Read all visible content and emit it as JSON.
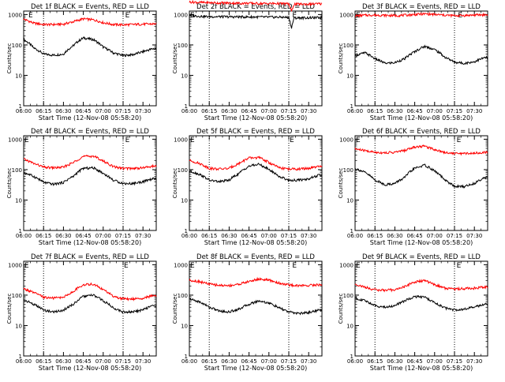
{
  "figure": {
    "xaxis_label": "Start Time (12-Nov-08 05:58:20)",
    "yaxis_label": "Counts/sec",
    "x_tick_labels": [
      "06:00",
      "06:15",
      "06:30",
      "06:45",
      "07:00",
      "07:15",
      "07:30"
    ],
    "y_tick_labels": [
      "1",
      "10",
      "100",
      "1000"
    ],
    "marker_E": "E",
    "colors": {
      "events": "#000000",
      "lld": "#ff0000",
      "axis": "#000000"
    }
  },
  "chart_data": [
    {
      "type": "line",
      "title": "Det 1f BLACK = Events, RED = LLD",
      "xlabel": "Start Time (12-Nov-08 05:58:20)",
      "ylabel": "Counts/sec",
      "ylim": [
        1,
        1000
      ],
      "yscale": "log",
      "x_minutes": [
        0,
        7.5,
        15,
        22.5,
        30,
        37.5,
        45,
        52.5,
        60,
        67.5,
        75,
        82.5,
        90,
        97.5
      ],
      "x_ticks_minutes": [
        0,
        15,
        30,
        45,
        60,
        75,
        90
      ],
      "vlines_minutes": [
        15,
        75
      ],
      "E_markers_minutes": [
        3,
        76
      ],
      "series": [
        {
          "name": "Events",
          "color": "#000000",
          "values": [
            150,
            80,
            50,
            46,
            50,
            95,
            170,
            150,
            85,
            55,
            45,
            48,
            60,
            75
          ]
        },
        {
          "name": "LLD",
          "color": "#ff0000",
          "values": [
            700,
            520,
            470,
            470,
            480,
            580,
            720,
            670,
            540,
            470,
            460,
            470,
            480,
            490
          ]
        }
      ]
    },
    {
      "type": "line",
      "title": "Det 2f BLACK = Events, RED = LLD",
      "xlabel": "Start Time (12-Nov-08 05:58:20)",
      "ylabel": "Counts/sec",
      "ylim": [
        1,
        1000
      ],
      "yscale": "log",
      "x_minutes": [
        0,
        7.5,
        15,
        22.5,
        30,
        37.5,
        45,
        52.5,
        60,
        67.5,
        75,
        77,
        79,
        82.5,
        90,
        97.5
      ],
      "x_ticks_minutes": [
        0,
        15,
        30,
        45,
        60,
        75,
        90
      ],
      "vlines_minutes": [
        15,
        75
      ],
      "E_markers_minutes": [
        0,
        77
      ],
      "series": [
        {
          "name": "Events",
          "color": "#000000",
          "values": [
            950,
            880,
            850,
            850,
            840,
            840,
            830,
            830,
            820,
            820,
            800,
            330,
            760,
            780,
            780,
            790
          ]
        },
        {
          "name": "LLD",
          "color": "#ff0000",
          "values": [
            2600,
            2500,
            2450,
            2400,
            2400,
            2350,
            2350,
            2300,
            2300,
            2300,
            2250,
            1200,
            2200,
            2200,
            2200,
            2250
          ]
        }
      ]
    },
    {
      "type": "line",
      "title": "Det 3f BLACK = Events, RED = LLD",
      "xlabel": "Start Time (12-Nov-08 05:58:20)",
      "ylabel": "Counts/sec",
      "ylim": [
        1,
        1000
      ],
      "yscale": "log",
      "x_minutes": [
        0,
        7.5,
        15,
        22.5,
        30,
        37.5,
        45,
        52.5,
        60,
        67.5,
        75,
        82.5,
        90,
        97.5
      ],
      "x_ticks_minutes": [
        0,
        15,
        30,
        45,
        60,
        75,
        90
      ],
      "vlines_minutes": [
        15,
        75
      ],
      "E_markers_minutes": [
        0,
        77
      ],
      "series": [
        {
          "name": "Events",
          "color": "#000000",
          "values": [
            45,
            55,
            35,
            25,
            26,
            35,
            60,
            90,
            70,
            40,
            27,
            25,
            28,
            38
          ]
        },
        {
          "name": "LLD",
          "color": "#ff0000",
          "values": [
            900,
            950,
            960,
            940,
            920,
            950,
            1000,
            1050,
            1000,
            950,
            920,
            930,
            960,
            980
          ]
        }
      ]
    },
    {
      "type": "line",
      "title": "Det 4f BLACK = Events, RED = LLD",
      "xlabel": "Start Time (12-Nov-08 05:58:20)",
      "ylabel": "Counts/sec",
      "ylim": [
        1,
        1000
      ],
      "yscale": "log",
      "x_minutes": [
        0,
        7.5,
        15,
        22.5,
        30,
        37.5,
        45,
        52.5,
        60,
        67.5,
        75,
        82.5,
        90,
        97.5
      ],
      "x_ticks_minutes": [
        0,
        15,
        30,
        45,
        60,
        75,
        90
      ],
      "vlines_minutes": [
        15,
        75
      ],
      "E_markers_minutes": [
        0,
        76
      ],
      "series": [
        {
          "name": "Events",
          "color": "#000000",
          "values": [
            80,
            60,
            38,
            33,
            38,
            60,
            110,
            115,
            75,
            45,
            35,
            35,
            40,
            50
          ]
        },
        {
          "name": "LLD",
          "color": "#ff0000",
          "values": [
            220,
            160,
            120,
            115,
            120,
            170,
            270,
            280,
            190,
            125,
            110,
            110,
            115,
            130
          ]
        }
      ]
    },
    {
      "type": "line",
      "title": "Det 5f BLACK = Events, RED = LLD",
      "xlabel": "Start Time (12-Nov-08 05:58:20)",
      "ylabel": "Counts/sec",
      "ylim": [
        1,
        1000
      ],
      "yscale": "log",
      "x_minutes": [
        0,
        7.5,
        15,
        22.5,
        30,
        37.5,
        45,
        52.5,
        60,
        67.5,
        75,
        82.5,
        90,
        97.5
      ],
      "x_ticks_minutes": [
        0,
        15,
        30,
        45,
        60,
        75,
        90
      ],
      "vlines_minutes": [
        15,
        75
      ],
      "E_markers_minutes": [
        0,
        75
      ],
      "series": [
        {
          "name": "Events",
          "color": "#000000",
          "values": [
            90,
            70,
            45,
            40,
            45,
            75,
            130,
            150,
            100,
            60,
            45,
            45,
            50,
            65
          ]
        },
        {
          "name": "LLD",
          "color": "#ff0000",
          "values": [
            200,
            160,
            110,
            105,
            110,
            160,
            240,
            250,
            170,
            115,
            105,
            105,
            110,
            125
          ]
        }
      ]
    },
    {
      "type": "line",
      "title": "Det 6f BLACK = Events, RED = LLD",
      "xlabel": "Start Time (12-Nov-08 05:58:20)",
      "ylabel": "Counts/sec",
      "ylim": [
        1,
        1000
      ],
      "yscale": "log",
      "x_minutes": [
        0,
        7.5,
        15,
        22.5,
        30,
        37.5,
        45,
        52.5,
        60,
        67.5,
        75,
        82.5,
        90,
        97.5
      ],
      "x_ticks_minutes": [
        0,
        15,
        30,
        45,
        60,
        75,
        90
      ],
      "vlines_minutes": [
        15,
        75
      ],
      "E_markers_minutes": [
        0,
        76
      ],
      "series": [
        {
          "name": "Events",
          "color": "#000000",
          "values": [
            110,
            80,
            45,
            32,
            35,
            55,
            110,
            140,
            90,
            45,
            28,
            28,
            35,
            55
          ]
        },
        {
          "name": "LLD",
          "color": "#ff0000",
          "values": [
            480,
            420,
            370,
            360,
            370,
            430,
            560,
            590,
            460,
            370,
            340,
            340,
            350,
            370
          ]
        }
      ]
    },
    {
      "type": "line",
      "title": "Det 7f BLACK = Events, RED = LLD",
      "xlabel": "Start Time (12-Nov-08 05:58:20)",
      "ylabel": "Counts/sec",
      "ylim": [
        1,
        1000
      ],
      "yscale": "log",
      "x_minutes": [
        0,
        7.5,
        15,
        22.5,
        30,
        37.5,
        45,
        52.5,
        60,
        67.5,
        75,
        82.5,
        90,
        97.5
      ],
      "x_ticks_minutes": [
        0,
        15,
        30,
        45,
        60,
        75,
        90
      ],
      "vlines_minutes": [
        15,
        75
      ],
      "E_markers_minutes": [
        0,
        75
      ],
      "series": [
        {
          "name": "Events",
          "color": "#000000",
          "values": [
            70,
            50,
            32,
            28,
            32,
            50,
            90,
            100,
            65,
            38,
            28,
            28,
            33,
            45
          ]
        },
        {
          "name": "LLD",
          "color": "#ff0000",
          "values": [
            160,
            120,
            85,
            80,
            85,
            130,
            220,
            230,
            150,
            90,
            75,
            75,
            80,
            95
          ]
        }
      ]
    },
    {
      "type": "line",
      "title": "Det 8f BLACK = Events, RED = LLD",
      "xlabel": "Start Time (12-Nov-08 05:58:20)",
      "ylabel": "Counts/sec",
      "ylim": [
        1,
        1000
      ],
      "yscale": "log",
      "x_minutes": [
        0,
        7.5,
        15,
        22.5,
        30,
        37.5,
        45,
        52.5,
        60,
        67.5,
        75,
        82.5,
        90,
        97.5
      ],
      "x_ticks_minutes": [
        0,
        15,
        30,
        45,
        60,
        75,
        90
      ],
      "vlines_minutes": [
        15,
        75
      ],
      "E_markers_minutes": [
        0,
        77
      ],
      "series": [
        {
          "name": "Events",
          "color": "#000000",
          "values": [
            75,
            60,
            40,
            30,
            28,
            35,
            50,
            65,
            55,
            38,
            28,
            25,
            27,
            32
          ]
        },
        {
          "name": "LLD",
          "color": "#ff0000",
          "values": [
            310,
            280,
            230,
            210,
            205,
            230,
            280,
            340,
            310,
            250,
            215,
            205,
            210,
            220
          ]
        }
      ]
    },
    {
      "type": "line",
      "title": "Det 9f BLACK = Events, RED = LLD",
      "xlabel": "Start Time (12-Nov-08 05:58:20)",
      "ylabel": "Counts/sec",
      "ylim": [
        1,
        1000
      ],
      "yscale": "log",
      "x_minutes": [
        0,
        7.5,
        15,
        22.5,
        30,
        37.5,
        45,
        52.5,
        60,
        67.5,
        75,
        82.5,
        90,
        97.5
      ],
      "x_ticks_minutes": [
        0,
        15,
        30,
        45,
        60,
        75,
        90
      ],
      "vlines_minutes": [
        15,
        75
      ],
      "E_markers_minutes": [
        0,
        76
      ],
      "series": [
        {
          "name": "Events",
          "color": "#000000",
          "values": [
            80,
            65,
            45,
            40,
            45,
            65,
            90,
            85,
            55,
            38,
            33,
            35,
            40,
            50
          ]
        },
        {
          "name": "LLD",
          "color": "#ff0000",
          "values": [
            230,
            180,
            150,
            145,
            150,
            190,
            270,
            300,
            220,
            170,
            160,
            165,
            170,
            185
          ]
        }
      ]
    }
  ]
}
